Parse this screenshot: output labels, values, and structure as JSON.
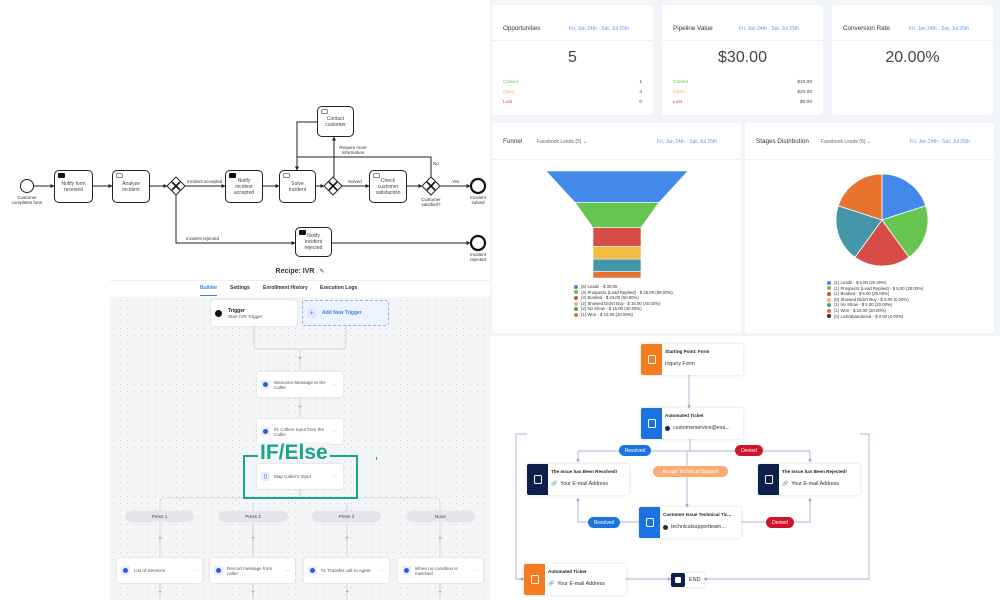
{
  "bpmn": {
    "start_label": "Customer completes form",
    "tasks": {
      "notify_form": "Notify form received",
      "analyze": "Analyze incident",
      "notify_accepted": "Notify incident accepted",
      "solve": "Solve incident",
      "check": "Check customer satisfaction",
      "contact": "Contact customer",
      "notify_rejected": "Notify incident rejected"
    },
    "flows": {
      "accepted": "Incident accepted",
      "rejected": "Incident rejected",
      "solved": "Solved",
      "more_info": "Require more information",
      "yes": "Yes",
      "no": "No"
    },
    "gateway_label": "Customer satisfied?",
    "end_solved": "Incident solved",
    "end_rejected": "Incident rejected"
  },
  "ivr": {
    "title": "Recipe: IVR",
    "tabs": [
      "Builder",
      "Settings",
      "Enrollment History",
      "Execution Logs"
    ],
    "active_tab": "Builder",
    "trigger_title": "Trigger",
    "trigger_sub": "Start IVR Trigger",
    "add_trigger": "Add New Trigger",
    "welcome": "Welcome Message to the Caller",
    "collect": "#1 Collect Input from the Caller",
    "ifelse_label": "IF/Else",
    "map_input": "Map Caller's Input",
    "branches": [
      "Press 1",
      "Press 2",
      "Press 3",
      "None"
    ],
    "actions": [
      "List of Services",
      "Record message from caller",
      "#1 Transfer call to Agent",
      "When no condition is matched"
    ],
    "accent": "#1aa58a"
  },
  "dashboard": {
    "date_range": "Fri, Jan 24th - Sat, Jul 25th",
    "opportunities": {
      "title": "Opportunities",
      "value": "5",
      "rows": [
        {
          "label": "Closed",
          "value": "1"
        },
        {
          "label": "Open",
          "value": "4"
        },
        {
          "label": "Lost",
          "value": "0"
        }
      ]
    },
    "pipeline": {
      "title": "Pipeline Value",
      "value": "$30.00",
      "rows": [
        {
          "label": "Closed",
          "value": "$10.00"
        },
        {
          "label": "Open",
          "value": "$20.00"
        },
        {
          "label": "Lost",
          "value": "$0.00"
        }
      ]
    },
    "conversion": {
      "title": "Conversion Rate",
      "value": "20.00%"
    },
    "status_colors": {
      "closed": "#6cc25a",
      "open": "#f2b33d",
      "lost": "#d9443f"
    }
  },
  "chart_data": [
    {
      "type": "funnel",
      "title": "Funnel",
      "filter": "Facebook Leads (5)",
      "categories": [
        "Leads",
        "Prospects (Lead Replied)",
        "Booked",
        "Showed Didn't Buy",
        "No Show",
        "Won"
      ],
      "counts": [
        5,
        4,
        3,
        2,
        2,
        1
      ],
      "values": [
        30.0,
        25.0,
        23.0,
        15.0,
        15.0,
        10.0
      ],
      "legend": [
        "(5) Leads - $ 30.00",
        "(4) Prospects (Lead Replied) - $ 25.00 (80.00%)",
        "(3) Booked - $ 23.00 (60.00%)",
        "(2) Showed Didn't Buy - $ 15.00 (40.00%)",
        "(2) No Show - $ 15.00 (40.00%)",
        "(1) Won - $ 10.00 (20.00%)"
      ],
      "colors": [
        "#4289ea",
        "#67c552",
        "#d84c47",
        "#f4bd41",
        "#4496a9",
        "#e8732f"
      ],
      "legend_position": "bottom"
    },
    {
      "type": "pie",
      "title": "Stages Distribution",
      "filter": "Facebook Leads (5)",
      "categories": [
        "Leads",
        "Prospects (Lead Replied)",
        "Booked",
        "Showed Didn't Buy",
        "No Show",
        "Won",
        "Lost/abandoned"
      ],
      "percents": [
        20,
        20,
        20,
        0,
        20,
        20,
        0
      ],
      "legend": [
        "(1) Leads - $ 5.00 (20.00%)",
        "(1) Prospects (Lead Replied) - $ 5.00 (20.00%)",
        "(1) Booked - $ 5.00 (20.00%)",
        "(0) Showed Didn't Buy - $ 0.00 (0.00%)",
        "(1) No Show - $ 5.00 (20.00%)",
        "(1) Won - $ 10.00 (20.00%)",
        "(0) Lost/abandoned - $ 0.00 (0.00%)"
      ],
      "colors": [
        "#4289ea",
        "#67c552",
        "#d84c47",
        "#f4bd41",
        "#4496a9",
        "#e8732f",
        "#333333"
      ],
      "legend_position": "bottom"
    }
  ],
  "flow": {
    "start": {
      "title": "Starting Point: Form",
      "sub": "Inquiry Form"
    },
    "ticket": {
      "title": "Automated Ticket",
      "sub": "customerservice@exa..."
    },
    "resolved_label": "Resolved",
    "denied_label": "Denied",
    "assign": "Assign Technical Support",
    "resolved_card": {
      "title": "The Issue has Been Resolved!",
      "sub": "Your E-mail Address"
    },
    "rejected_card": {
      "title": "The Issue has Been Rejected!",
      "sub": "Your E-mail Address"
    },
    "tech": {
      "title": "Customer Issue Technical Tic...",
      "sub": "technicalsupportteam..."
    },
    "final": {
      "title": "Automated Ticket",
      "sub": "Your E-mail Address"
    },
    "end": "END",
    "colors": {
      "orange": "#f57c20",
      "blue": "#1a73e0",
      "navy": "#0f1f4d",
      "red": "#d0142c",
      "assign": "#fbab74"
    }
  }
}
